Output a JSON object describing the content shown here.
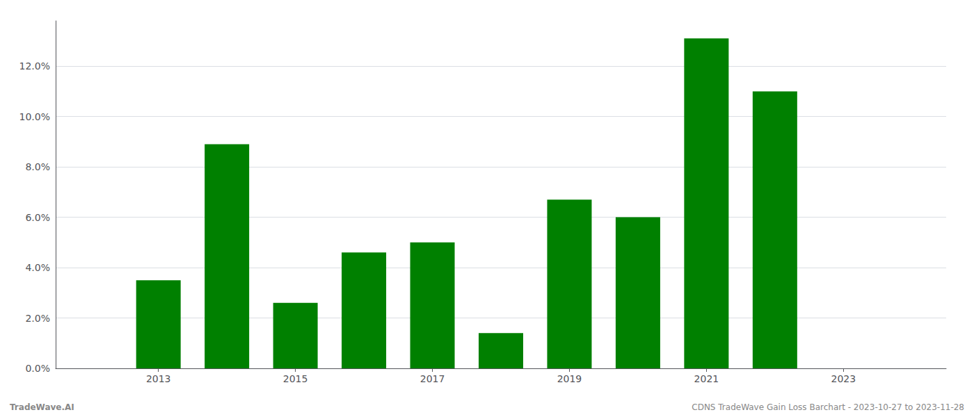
{
  "chart_data": {
    "type": "bar",
    "x": [
      2013,
      2014,
      2015,
      2016,
      2017,
      2018,
      2019,
      2020,
      2021,
      2022
    ],
    "values": [
      0.035,
      0.089,
      0.026,
      0.046,
      0.05,
      0.014,
      0.067,
      0.06,
      0.131,
      0.11
    ],
    "color": "#008000",
    "xlim": [
      2011.5,
      2024.5
    ],
    "xticks": [
      2013,
      2015,
      2017,
      2019,
      2021,
      2023
    ],
    "ylim": [
      0,
      0.138
    ],
    "yticks": [
      {
        "value": 0.0,
        "label": "0.0%"
      },
      {
        "value": 0.02,
        "label": "2.0%"
      },
      {
        "value": 0.04,
        "label": "4.0%"
      },
      {
        "value": 0.06,
        "label": "6.0%"
      },
      {
        "value": 0.08,
        "label": "8.0%"
      },
      {
        "value": 0.1,
        "label": "10.0%"
      },
      {
        "value": 0.12,
        "label": "12.0%"
      }
    ],
    "grid": true,
    "annotations": [
      "TradeWave.AI",
      "CDNS TradeWave Gain Loss Barchart - 2023-10-27 to 2023-11-28"
    ]
  }
}
